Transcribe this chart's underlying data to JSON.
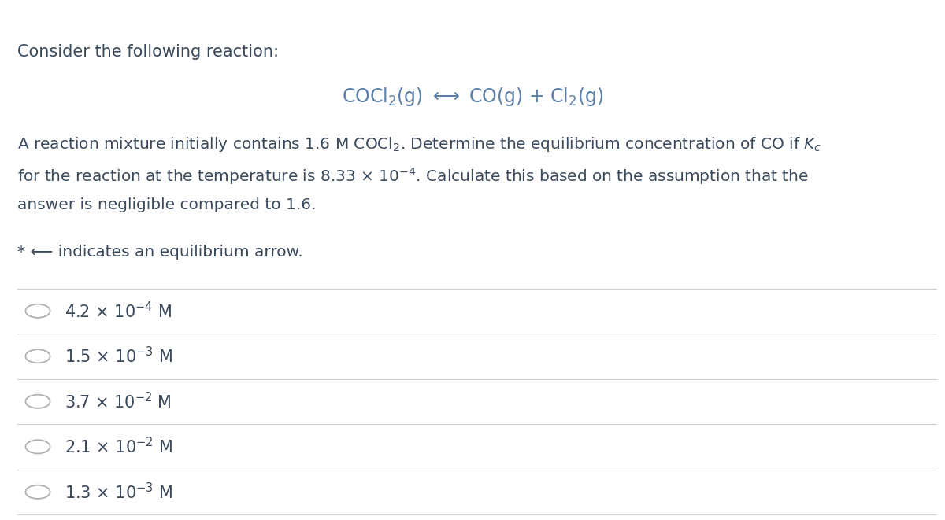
{
  "background_color": "#ffffff",
  "title_text": "Consider the following reaction:",
  "text_color": "#3a4a5c",
  "line_color": "#d0d0d0",
  "circle_color": "#b0b0b0",
  "reaction_color": "#5a7fa8",
  "title_fontsize": 15,
  "body_fontsize": 14.5,
  "choice_fontsize": 15,
  "reaction_fontsize": 17,
  "footnote_fontsize": 14.5,
  "choices_latex": [
    "4.2 $\\times$ 10$^{-4}$ M",
    "1.5 $\\times$ 10$^{-3}$ M",
    "3.7 $\\times$ 10$^{-2}$ M",
    "2.1 $\\times$ 10$^{-2}$ M",
    "1.3 $\\times$ 10$^{-3}$ M"
  ]
}
